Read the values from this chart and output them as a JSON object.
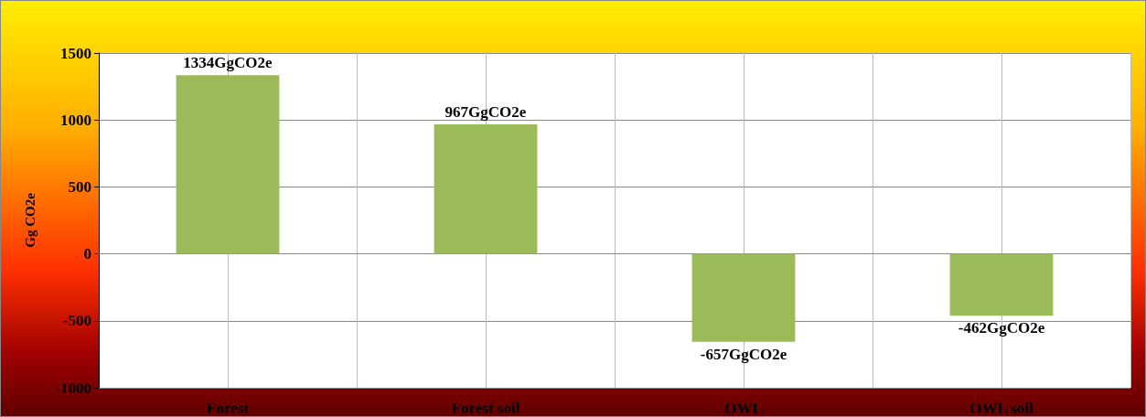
{
  "chart_data": {
    "type": "bar",
    "ylabel": "Gg CO2e",
    "categories": [
      "Forest",
      "Forest soil",
      "OWL",
      "OWL soil"
    ],
    "values": [
      1334,
      967,
      -657,
      -462
    ],
    "value_labels": [
      "1334GgCO2e",
      "967GgCO2e",
      "-657GgCO2e",
      "-462GgCO2e"
    ],
    "color": "#9bbb59",
    "ylim": [
      -1000,
      1500
    ],
    "yticks": [
      -1000,
      -500,
      0,
      500,
      1000,
      1500
    ],
    "grid": true
  }
}
